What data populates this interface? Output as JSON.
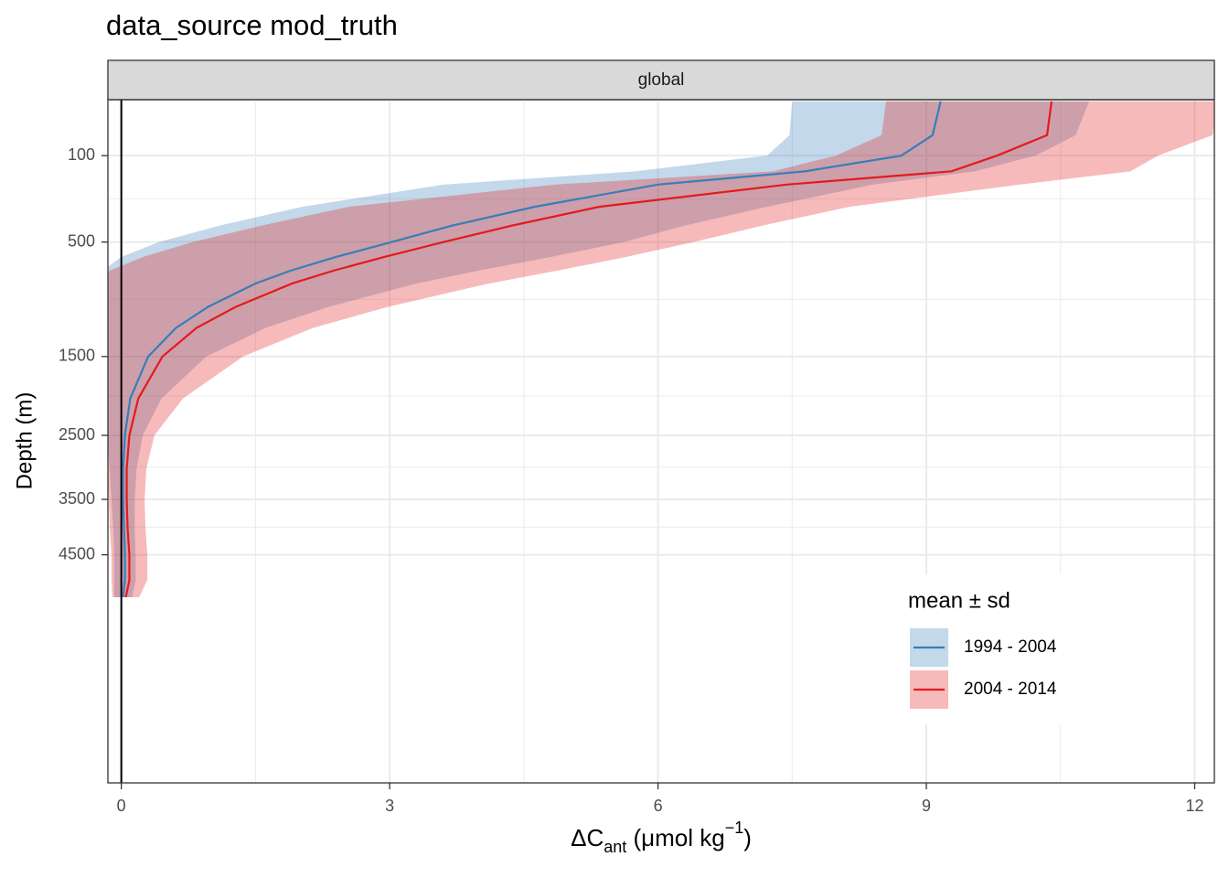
{
  "chart_data": {
    "type": "line",
    "title": "data_source mod_truth",
    "facet": "global",
    "x_label_parts": [
      "ΔC",
      "ant",
      " (μmol kg",
      "−1",
      ")"
    ],
    "y_label": "Depth (m)",
    "y": [
      5,
      50,
      100,
      150,
      200,
      300,
      400,
      500,
      600,
      700,
      800,
      1000,
      1200,
      1500,
      2000,
      2500,
      3000,
      3500,
      4000,
      4500,
      5000,
      5350
    ],
    "series": [
      {
        "name": "1994 - 2004",
        "color": "#377eb8",
        "values": [
          9.16,
          9.07,
          8.72,
          7.64,
          6.0,
          4.62,
          3.7,
          3.02,
          2.4,
          1.89,
          1.5,
          0.97,
          0.61,
          0.3,
          0.1,
          0.04,
          0.02,
          0.02,
          0.03,
          0.04,
          0.04,
          0.02
        ],
        "sd": [
          1.66,
          1.6,
          1.5,
          1.9,
          2.4,
          2.6,
          2.6,
          2.6,
          2.4,
          2.1,
          1.8,
          1.35,
          1.0,
          0.65,
          0.35,
          0.2,
          0.15,
          0.13,
          0.12,
          0.12,
          0.12,
          0.1
        ]
      },
      {
        "name": "2004 - 2014",
        "color": "#e41a1c",
        "values": [
          10.4,
          10.35,
          9.79,
          9.28,
          7.44,
          5.34,
          4.37,
          3.6,
          2.94,
          2.37,
          1.91,
          1.28,
          0.84,
          0.46,
          0.19,
          0.09,
          0.06,
          0.06,
          0.07,
          0.09,
          0.09,
          0.05
        ],
        "sd": [
          1.85,
          1.85,
          1.8,
          2.0,
          2.6,
          2.8,
          2.8,
          2.8,
          2.7,
          2.5,
          2.2,
          1.7,
          1.3,
          0.9,
          0.5,
          0.28,
          0.22,
          0.2,
          0.2,
          0.2,
          0.2,
          0.15
        ]
      }
    ],
    "band_opacity": 0.3,
    "xintercept": 0,
    "xlim": [
      -0.15,
      12.22
    ],
    "xticks": [
      0,
      3,
      6,
      9,
      12
    ],
    "ylim": [
      4,
      9940
    ],
    "yticks": [
      100,
      500,
      1500,
      2500,
      3500,
      4500
    ],
    "y_scale": "sqrt",
    "y_reversed": true,
    "grid": true,
    "legend_title": "mean ± sd",
    "legend_position": "bottom-right"
  }
}
